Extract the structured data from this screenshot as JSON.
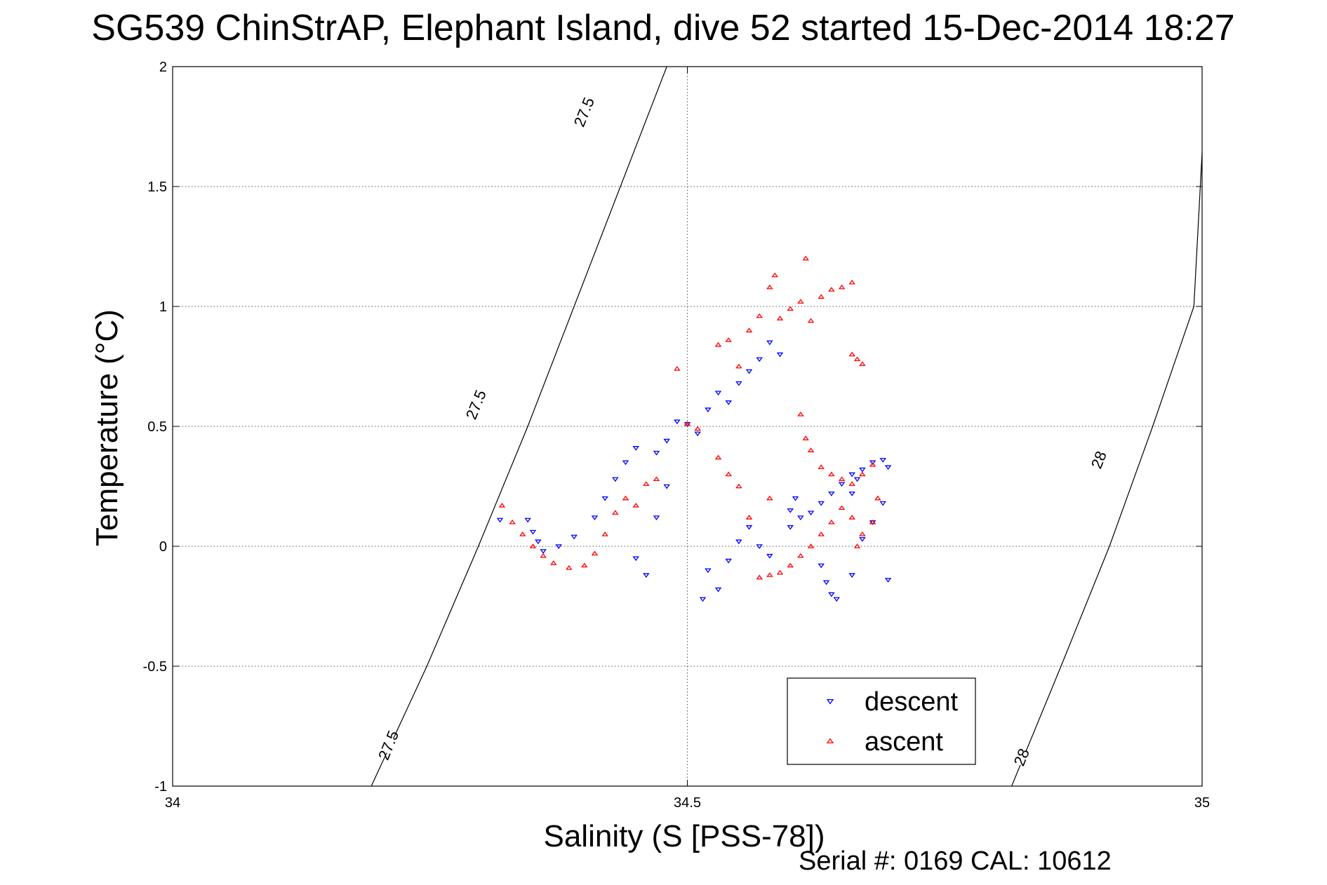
{
  "chart_data": {
    "type": "scatter",
    "title": "SG539 ChinStrAP, Elephant Island, dive 52 started 15-Dec-2014 18:27",
    "xlabel": "Salinity (S [PSS-78])",
    "ylabel": "Temperature (°C)",
    "xlim": [
      34,
      35
    ],
    "ylim": [
      -1,
      2
    ],
    "xticks": [
      34,
      34.5,
      35
    ],
    "xtick_labels": [
      "34",
      "34.5",
      "35"
    ],
    "yticks": [
      -1,
      -0.5,
      0,
      0.5,
      1,
      1.5,
      2
    ],
    "ytick_labels": [
      "-1",
      "-0.5",
      "0",
      "0.5",
      "1",
      "1.5",
      "2"
    ],
    "grid": true,
    "legend_position": "bottom-right",
    "footer": "Serial #: 0169 CAL: 10612",
    "contours": [
      {
        "label": "27.5",
        "points": [
          [
            34.193,
            -1.0
          ],
          [
            34.247,
            -0.5
          ],
          [
            34.297,
            0.0
          ],
          [
            34.345,
            0.5
          ],
          [
            34.39,
            1.0
          ],
          [
            34.435,
            1.5
          ],
          [
            34.48,
            2.0
          ]
        ],
        "label_positions": [
          [
            34.21,
            -0.83
          ],
          [
            34.295,
            0.59
          ],
          [
            34.4,
            1.81
          ]
        ]
      },
      {
        "label": "28",
        "points": [
          [
            34.815,
            -1.0
          ],
          [
            34.863,
            -0.5
          ],
          [
            34.91,
            0.0
          ],
          [
            34.952,
            0.5
          ],
          [
            34.992,
            1.0
          ],
          [
            35.0,
            1.64
          ]
        ],
        "label_positions": [
          [
            34.825,
            -0.88
          ],
          [
            34.9,
            0.36
          ]
        ]
      }
    ],
    "series": [
      {
        "name": "descent",
        "color": "#0000ff",
        "marker": "triangle-down",
        "points": [
          [
            34.318,
            0.11
          ],
          [
            34.345,
            0.11
          ],
          [
            34.35,
            0.06
          ],
          [
            34.355,
            0.02
          ],
          [
            34.36,
            -0.02
          ],
          [
            34.375,
            0.0
          ],
          [
            34.39,
            0.04
          ],
          [
            34.41,
            0.12
          ],
          [
            34.42,
            0.2
          ],
          [
            34.43,
            0.28
          ],
          [
            34.44,
            0.35
          ],
          [
            34.45,
            0.41
          ],
          [
            34.47,
            0.39
          ],
          [
            34.48,
            0.44
          ],
          [
            34.49,
            0.52
          ],
          [
            34.5,
            0.51
          ],
          [
            34.51,
            0.47
          ],
          [
            34.52,
            0.57
          ],
          [
            34.53,
            0.64
          ],
          [
            34.54,
            0.6
          ],
          [
            34.55,
            0.68
          ],
          [
            34.56,
            0.73
          ],
          [
            34.57,
            0.78
          ],
          [
            34.58,
            0.85
          ],
          [
            34.59,
            0.8
          ],
          [
            34.45,
            -0.05
          ],
          [
            34.46,
            -0.12
          ],
          [
            34.47,
            0.12
          ],
          [
            34.48,
            0.25
          ],
          [
            34.52,
            -0.1
          ],
          [
            34.515,
            -0.22
          ],
          [
            34.53,
            -0.18
          ],
          [
            34.54,
            -0.06
          ],
          [
            34.55,
            0.02
          ],
          [
            34.56,
            0.08
          ],
          [
            34.57,
            0.0
          ],
          [
            34.58,
            -0.04
          ],
          [
            34.6,
            0.08
          ],
          [
            34.61,
            0.12
          ],
          [
            34.62,
            0.14
          ],
          [
            34.63,
            0.18
          ],
          [
            34.64,
            0.22
          ],
          [
            34.65,
            0.26
          ],
          [
            34.66,
            0.3
          ],
          [
            34.67,
            0.32
          ],
          [
            34.68,
            0.35
          ],
          [
            34.69,
            0.36
          ],
          [
            34.695,
            0.33
          ],
          [
            34.63,
            -0.08
          ],
          [
            34.635,
            -0.15
          ],
          [
            34.64,
            -0.2
          ],
          [
            34.645,
            -0.22
          ],
          [
            34.66,
            -0.12
          ],
          [
            34.67,
            0.03
          ],
          [
            34.68,
            0.1
          ],
          [
            34.69,
            0.18
          ],
          [
            34.66,
            0.22
          ],
          [
            34.665,
            0.28
          ],
          [
            34.6,
            0.15
          ],
          [
            34.605,
            0.2
          ],
          [
            34.695,
            -0.14
          ]
        ]
      },
      {
        "name": "ascent",
        "color": "#ff0000",
        "marker": "triangle-up",
        "points": [
          [
            34.32,
            0.17
          ],
          [
            34.33,
            0.1
          ],
          [
            34.34,
            0.05
          ],
          [
            34.35,
            0.0
          ],
          [
            34.36,
            -0.04
          ],
          [
            34.37,
            -0.07
          ],
          [
            34.385,
            -0.09
          ],
          [
            34.4,
            -0.08
          ],
          [
            34.41,
            -0.03
          ],
          [
            34.42,
            0.05
          ],
          [
            34.43,
            0.14
          ],
          [
            34.44,
            0.2
          ],
          [
            34.45,
            0.17
          ],
          [
            34.46,
            0.26
          ],
          [
            34.47,
            0.28
          ],
          [
            34.49,
            0.74
          ],
          [
            34.5,
            0.51
          ],
          [
            34.51,
            0.49
          ],
          [
            34.53,
            0.84
          ],
          [
            34.54,
            0.86
          ],
          [
            34.55,
            0.75
          ],
          [
            34.56,
            0.9
          ],
          [
            34.57,
            0.96
          ],
          [
            34.58,
            1.08
          ],
          [
            34.585,
            1.13
          ],
          [
            34.59,
            0.95
          ],
          [
            34.6,
            0.99
          ],
          [
            34.61,
            1.02
          ],
          [
            34.615,
            1.2
          ],
          [
            34.62,
            0.94
          ],
          [
            34.63,
            1.04
          ],
          [
            34.64,
            1.07
          ],
          [
            34.65,
            1.08
          ],
          [
            34.66,
            1.1
          ],
          [
            34.66,
            0.8
          ],
          [
            34.665,
            0.78
          ],
          [
            34.67,
            0.76
          ],
          [
            34.61,
            0.55
          ],
          [
            34.615,
            0.45
          ],
          [
            34.62,
            0.4
          ],
          [
            34.63,
            0.33
          ],
          [
            34.64,
            0.3
          ],
          [
            34.65,
            0.28
          ],
          [
            34.66,
            0.26
          ],
          [
            34.67,
            0.3
          ],
          [
            34.68,
            0.34
          ],
          [
            34.685,
            0.2
          ],
          [
            34.68,
            0.1
          ],
          [
            34.67,
            0.05
          ],
          [
            34.665,
            0.0
          ],
          [
            34.66,
            0.12
          ],
          [
            34.65,
            0.16
          ],
          [
            34.64,
            0.1
          ],
          [
            34.63,
            0.05
          ],
          [
            34.62,
            0.0
          ],
          [
            34.61,
            -0.04
          ],
          [
            34.6,
            -0.08
          ],
          [
            34.59,
            -0.11
          ],
          [
            34.58,
            -0.12
          ],
          [
            34.57,
            -0.13
          ],
          [
            34.56,
            0.12
          ],
          [
            34.55,
            0.25
          ],
          [
            34.54,
            0.3
          ],
          [
            34.58,
            0.2
          ],
          [
            34.53,
            0.37
          ]
        ]
      }
    ]
  }
}
